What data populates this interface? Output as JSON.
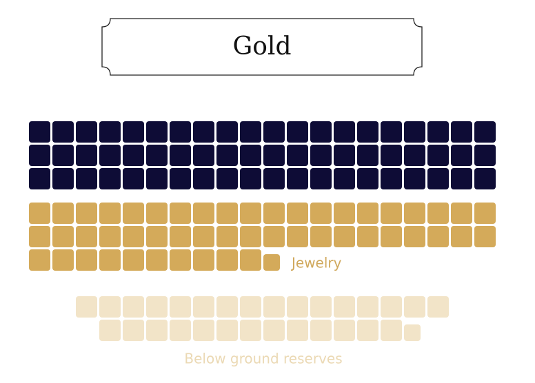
{
  "chart_data": {
    "type": "waffle",
    "title": "Gold",
    "series": [
      {
        "name": null,
        "color": "#0e0c36",
        "value": 60
      },
      {
        "name": "Jewelry",
        "color": "#d4aa5a",
        "value": 50.6
      },
      {
        "name": "Below ground reserves",
        "color": "#f2e4c8",
        "value": 29.6
      }
    ]
  }
}
